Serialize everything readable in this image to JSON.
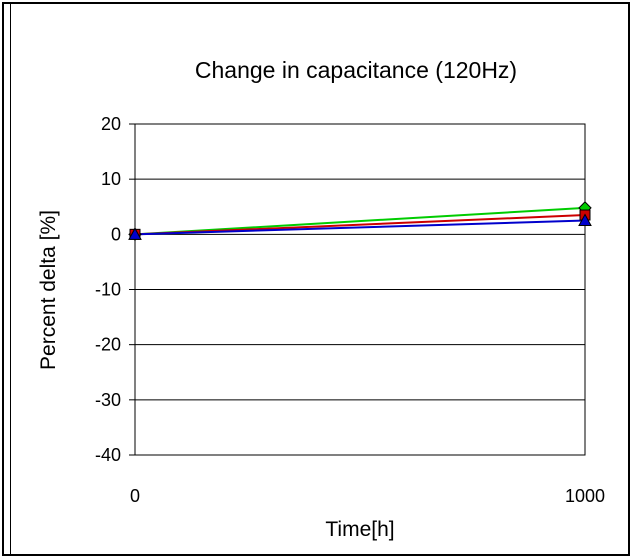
{
  "chart_data": {
    "type": "line",
    "title": "Change in capacitance (120Hz)",
    "xlabel": "Time[h]",
    "ylabel": "Percent delta [%]",
    "x": [
      0,
      1000
    ],
    "x_ticks": [
      "0",
      "1000"
    ],
    "y_ticks": [
      "20",
      "10",
      "0",
      "-10",
      "-20",
      "-30",
      "-40"
    ],
    "ylim": [
      -40,
      20
    ],
    "xlim": [
      0,
      1000
    ],
    "grid": "horizontal",
    "legend": "none",
    "series": [
      {
        "color": "#00cc00",
        "marker": "diamond",
        "values": [
          0,
          4.8
        ]
      },
      {
        "color": "#cc0000",
        "marker": "square",
        "values": [
          0,
          3.5
        ]
      },
      {
        "color": "#0000cc",
        "marker": "triangle",
        "values": [
          0,
          2.5
        ]
      }
    ]
  }
}
